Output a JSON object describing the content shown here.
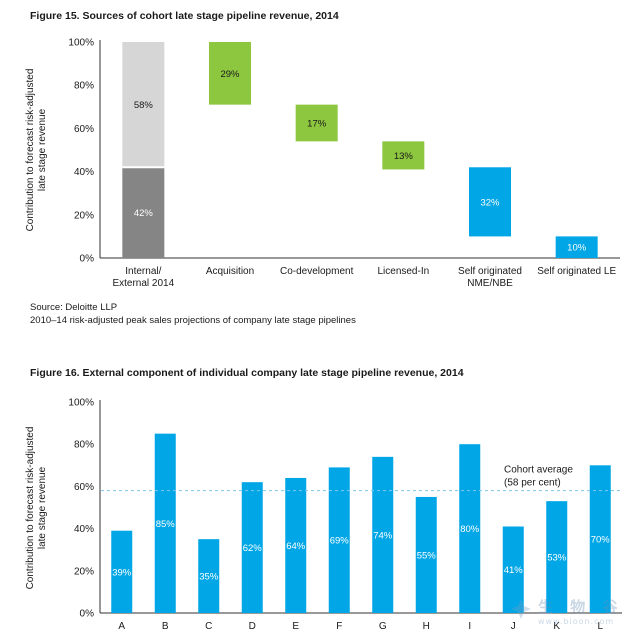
{
  "figure15_title": "Figure 15. Sources of cohort late stage pipeline revenue, 2014",
  "figure16_title": "Figure 16. External component of individual company late stage pipeline revenue, 2014",
  "source_line": "Source: Deloitte LLP",
  "source_note": "2010–14 risk-adjusted peak sales projections of company late stage pipelines",
  "watermark": "生 物 谷 www.bioon.com",
  "colors": {
    "grey_dark": "#858585",
    "grey_light": "#d6d6d6",
    "green": "#8dc63f",
    "blue": "#00a6e6",
    "avg_line": "#7fc8e8"
  },
  "chart_data": [
    {
      "type": "bar",
      "subtype": "waterfall",
      "ylabel": "Contribution to forecast risk-adjusted late stage revenue",
      "ylim": [
        0,
        100
      ],
      "yticks": [
        "0%",
        "20%",
        "40%",
        "60%",
        "80%",
        "100%"
      ],
      "categories": [
        "Internal/ External 2014",
        "Acquisition",
        "Co-development",
        "Licensed-In",
        "Self originated NME/NBE",
        "Self originated LE"
      ],
      "category_lines": [
        [
          "Internal/",
          "External 2014"
        ],
        [
          "Acquisition"
        ],
        [
          "Co-development"
        ],
        [
          "Licensed-In"
        ],
        [
          "Self originated",
          "NME/NBE"
        ],
        [
          "Self originated LE"
        ]
      ],
      "stacked_first": [
        {
          "name": "Internal",
          "value": 42,
          "label": "42%",
          "color": "#858585"
        },
        {
          "name": "External",
          "value": 58,
          "label": "58%",
          "color": "#d6d6d6"
        }
      ],
      "segments": [
        {
          "category": "Acquisition",
          "start": 71,
          "end": 100,
          "value": 29,
          "label": "29%",
          "color": "#8dc63f"
        },
        {
          "category": "Co-development",
          "start": 54,
          "end": 71,
          "value": 17,
          "label": "17%",
          "color": "#8dc63f"
        },
        {
          "category": "Licensed-In",
          "start": 41,
          "end": 54,
          "value": 13,
          "label": "13%",
          "color": "#8dc63f"
        },
        {
          "category": "Self originated NME/NBE",
          "start": 10,
          "end": 42,
          "value": 32,
          "label": "32%",
          "color": "#00a6e6"
        },
        {
          "category": "Self originated LE",
          "start": 0,
          "end": 10,
          "value": 10,
          "label": "10%",
          "color": "#00a6e6"
        }
      ]
    },
    {
      "type": "bar",
      "ylabel": "Contribution to forecast risk-adjusted late stage revenue",
      "ylim": [
        0,
        100
      ],
      "yticks": [
        "0%",
        "20%",
        "40%",
        "60%",
        "80%",
        "100%"
      ],
      "categories": [
        "A",
        "B",
        "C",
        "D",
        "E",
        "F",
        "G",
        "H",
        "I",
        "J",
        "K",
        "L"
      ],
      "values": [
        39,
        85,
        35,
        62,
        64,
        69,
        74,
        55,
        80,
        41,
        53,
        70
      ],
      "labels": [
        "39%",
        "85%",
        "35%",
        "62%",
        "64%",
        "69%",
        "74%",
        "55%",
        "80%",
        "41%",
        "53%",
        "70%"
      ],
      "reference_line": {
        "value": 58,
        "label_lines": [
          "Cohort average",
          "(58 per cent)"
        ]
      }
    }
  ]
}
